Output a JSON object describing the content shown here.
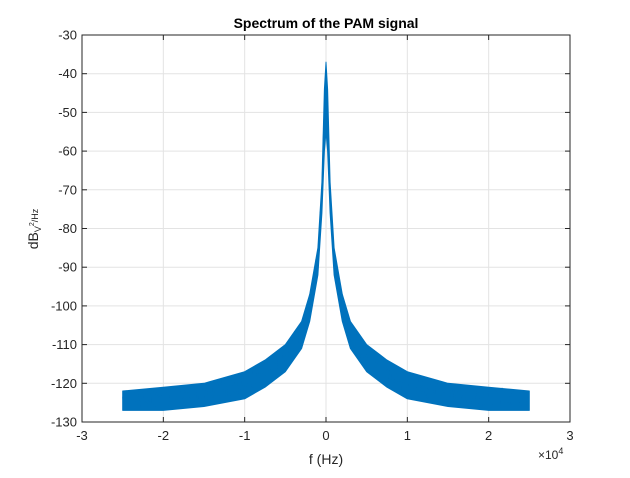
{
  "chart_data": {
    "type": "line",
    "title": "Spectrum of the PAM signal",
    "xlabel": "f (Hz)",
    "ylabel": {
      "base": "dB",
      "subscript": "V",
      "superscript": "2",
      "tail": "/Hz"
    },
    "x_exponent": {
      "base": "×10",
      "power": "4"
    },
    "xlim": [
      -3,
      3
    ],
    "ylim": [
      -130,
      -30
    ],
    "x_scale_factor": 10000,
    "xticks": [
      -3,
      -2,
      -1,
      0,
      1,
      2,
      3
    ],
    "xtick_labels": [
      "-3",
      "-2",
      "-1",
      "0",
      "1",
      "2",
      "3"
    ],
    "yticks": [
      -130,
      -120,
      -110,
      -100,
      -90,
      -80,
      -70,
      -60,
      -50,
      -40,
      -30
    ],
    "ytick_labels": [
      "-130",
      "-120",
      "-110",
      "-100",
      "-90",
      "-80",
      "-70",
      "-60",
      "-50",
      "-40",
      "-30"
    ],
    "grid": true,
    "series": [
      {
        "color": "#0072BD",
        "envelope": {
          "x": [
            -2.5,
            -2.0,
            -1.5,
            -1.0,
            -0.75,
            -0.5,
            -0.3,
            -0.2,
            -0.1,
            -0.05,
            -0.02,
            0,
            0.02,
            0.05,
            0.1,
            0.2,
            0.3,
            0.5,
            0.75,
            1.0,
            1.5,
            2.0,
            2.5
          ],
          "upper": [
            -122,
            -121,
            -120,
            -117,
            -114,
            -110,
            -104,
            -97,
            -85,
            -68,
            -44,
            -37,
            -44,
            -68,
            -85,
            -97,
            -104,
            -110,
            -114,
            -117,
            -120,
            -121,
            -122
          ],
          "lower": [
            -127,
            -127,
            -126,
            -124,
            -121,
            -117,
            -111,
            -104,
            -92,
            -76,
            -60,
            -55,
            -60,
            -76,
            -92,
            -104,
            -111,
            -117,
            -121,
            -124,
            -126,
            -127,
            -127
          ]
        }
      }
    ]
  }
}
